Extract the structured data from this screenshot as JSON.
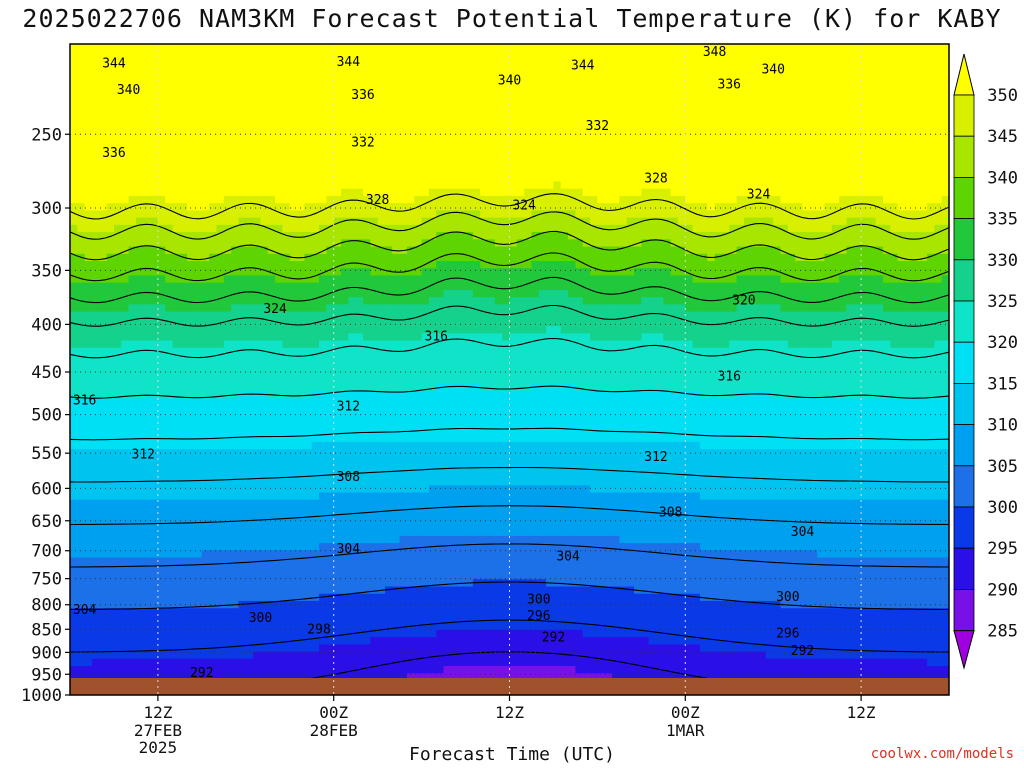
{
  "title": "2025022706 NAM3KM Forecast Potential Temperature (K) for KABY",
  "x_axis_title": "Forecast Time (UTC)",
  "credit": "coolwx.com/models",
  "chart_data": {
    "type": "heatmap",
    "title": "2025022706 NAM3KM Forecast Potential Temperature (K) for KABY",
    "xlabel": "Forecast Time (UTC)",
    "ylabel": "",
    "y_scale": "pressure (log), inverted",
    "ylim": [
      1000,
      200
    ],
    "xlim_hours_from_init": [
      0,
      60
    ],
    "x_ticks": [
      {
        "label": "12Z",
        "sub": [
          "27FEB",
          "2025"
        ],
        "hour": 6
      },
      {
        "label": "00Z",
        "sub": [
          "28FEB"
        ],
        "hour": 18
      },
      {
        "label": "12Z",
        "sub": [],
        "hour": 30
      },
      {
        "label": "00Z",
        "sub": [
          "1MAR"
        ],
        "hour": 42
      },
      {
        "label": "12Z",
        "sub": [],
        "hour": 54
      }
    ],
    "y_ticks": [
      250,
      300,
      350,
      400,
      450,
      500,
      550,
      600,
      650,
      700,
      750,
      800,
      850,
      900,
      950,
      1000
    ],
    "colorbar_ticks": [
      350,
      345,
      340,
      335,
      330,
      325,
      320,
      315,
      310,
      305,
      300,
      295,
      290,
      285
    ],
    "colorbar_colors": [
      "#ffff00",
      "#d8f000",
      "#a8e600",
      "#5ed400",
      "#22c83c",
      "#14d28c",
      "#10e4c8",
      "#00e0f4",
      "#00c4f0",
      "#00a0f0",
      "#1c70e8",
      "#0a3ae8",
      "#2a10e6",
      "#7a10e8",
      "#a000e0"
    ],
    "grid": true,
    "contour_levels": [
      292,
      296,
      300,
      304,
      308,
      312,
      316,
      320,
      324,
      328,
      332,
      336,
      340,
      344,
      348
    ],
    "contour_labels": [
      {
        "text": "344",
        "hour": 3,
        "p": 210
      },
      {
        "text": "344",
        "hour": 19,
        "p": 209
      },
      {
        "text": "344",
        "hour": 35,
        "p": 211
      },
      {
        "text": "348",
        "hour": 44,
        "p": 204
      },
      {
        "text": "340",
        "hour": 4,
        "p": 224
      },
      {
        "text": "340",
        "hour": 30,
        "p": 219
      },
      {
        "text": "340",
        "hour": 48,
        "p": 213
      },
      {
        "text": "336",
        "hour": 20,
        "p": 227
      },
      {
        "text": "336",
        "hour": 45,
        "p": 221
      },
      {
        "text": "336",
        "hour": 3,
        "p": 262
      },
      {
        "text": "332",
        "hour": 20,
        "p": 255
      },
      {
        "text": "332",
        "hour": 36,
        "p": 245
      },
      {
        "text": "328",
        "hour": 40,
        "p": 279
      },
      {
        "text": "328",
        "hour": 21,
        "p": 294
      },
      {
        "text": "324",
        "hour": 47,
        "p": 290
      },
      {
        "text": "324",
        "hour": 31,
        "p": 298
      },
      {
        "text": "324",
        "hour": 14,
        "p": 385
      },
      {
        "text": "320",
        "hour": 46,
        "p": 377
      },
      {
        "text": "316",
        "hour": 25,
        "p": 412
      },
      {
        "text": "316",
        "hour": 45,
        "p": 455
      },
      {
        "text": "316",
        "hour": 1,
        "p": 483
      },
      {
        "text": "312",
        "hour": 19,
        "p": 490
      },
      {
        "text": "312",
        "hour": 40,
        "p": 555
      },
      {
        "text": "312",
        "hour": 5,
        "p": 552
      },
      {
        "text": "308",
        "hour": 19,
        "p": 583
      },
      {
        "text": "308",
        "hour": 41,
        "p": 637
      },
      {
        "text": "304",
        "hour": 19,
        "p": 697
      },
      {
        "text": "304",
        "hour": 34,
        "p": 710
      },
      {
        "text": "304",
        "hour": 50,
        "p": 668
      },
      {
        "text": "304",
        "hour": 1,
        "p": 810
      },
      {
        "text": "300",
        "hour": 13,
        "p": 827
      },
      {
        "text": "300",
        "hour": 32,
        "p": 790
      },
      {
        "text": "300",
        "hour": 49,
        "p": 785
      },
      {
        "text": "298",
        "hour": 17,
        "p": 851
      },
      {
        "text": "296",
        "hour": 32,
        "p": 823
      },
      {
        "text": "296",
        "hour": 49,
        "p": 859
      },
      {
        "text": "292",
        "hour": 33,
        "p": 867
      },
      {
        "text": "292",
        "hour": 50,
        "p": 897
      },
      {
        "text": "292",
        "hour": 9,
        "p": 947
      }
    ]
  }
}
